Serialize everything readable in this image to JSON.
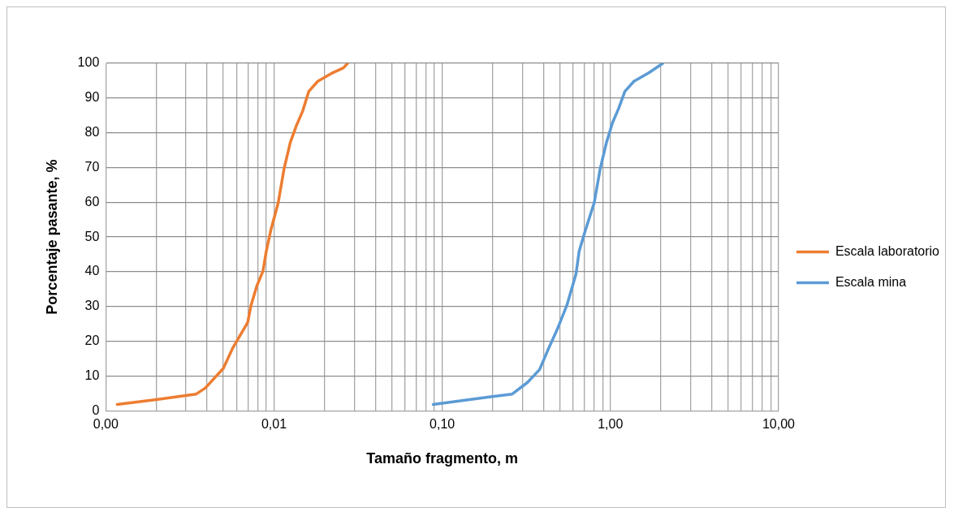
{
  "chart_data": {
    "type": "line",
    "xlabel": "Tamaño fragmento, m",
    "ylabel": "Porcentaje pasante, %",
    "log": "x",
    "grid": true,
    "legend": "right",
    "marker": "none",
    "line_style": "solid",
    "xlim": [
      0.001,
      10
    ],
    "ylim": [
      0,
      100
    ],
    "xticks": [
      {
        "value": 0.001,
        "label": "0,00"
      },
      {
        "value": 0.002,
        "label": null
      },
      {
        "value": 0.003,
        "label": null
      },
      {
        "value": 0.004,
        "label": null
      },
      {
        "value": 0.005,
        "label": null
      },
      {
        "value": 0.006,
        "label": null
      },
      {
        "value": 0.007,
        "label": null
      },
      {
        "value": 0.008,
        "label": null
      },
      {
        "value": 0.009,
        "label": null
      },
      {
        "value": 0.01,
        "label": "0,01"
      },
      {
        "value": 0.02,
        "label": null
      },
      {
        "value": 0.03,
        "label": null
      },
      {
        "value": 0.04,
        "label": null
      },
      {
        "value": 0.05,
        "label": null
      },
      {
        "value": 0.06,
        "label": null
      },
      {
        "value": 0.07,
        "label": null
      },
      {
        "value": 0.08,
        "label": null
      },
      {
        "value": 0.09,
        "label": null
      },
      {
        "value": 0.1,
        "label": "0,10"
      },
      {
        "value": 0.2,
        "label": null
      },
      {
        "value": 0.3,
        "label": null
      },
      {
        "value": 0.4,
        "label": null
      },
      {
        "value": 0.5,
        "label": null
      },
      {
        "value": 0.6,
        "label": null
      },
      {
        "value": 0.7,
        "label": null
      },
      {
        "value": 0.8,
        "label": null
      },
      {
        "value": 0.9,
        "label": null
      },
      {
        "value": 1,
        "label": "1,00"
      },
      {
        "value": 2,
        "label": null
      },
      {
        "value": 3,
        "label": null
      },
      {
        "value": 4,
        "label": null
      },
      {
        "value": 5,
        "label": null
      },
      {
        "value": 6,
        "label": null
      },
      {
        "value": 7,
        "label": null
      },
      {
        "value": 8,
        "label": null
      },
      {
        "value": 9,
        "label": null
      },
      {
        "value": 10,
        "label": "10,00"
      }
    ],
    "yticks": [
      0,
      10,
      20,
      30,
      40,
      50,
      60,
      70,
      80,
      90,
      100
    ],
    "series": [
      {
        "name": "Escala laboratorio",
        "color": "#ed7d31",
        "x": [
          0.00117,
          0.002,
          0.00345,
          0.0039,
          0.005,
          0.00568,
          0.00698,
          0.0073,
          0.00792,
          0.0086,
          0.009,
          0.00955,
          0.0106,
          0.0115,
          0.0125,
          0.0136,
          0.0148,
          0.0161,
          0.0182,
          0.0224,
          0.0259,
          0.0274
        ],
        "values": [
          1.8,
          3.2,
          4.8,
          6.5,
          12.2,
          18,
          25.4,
          30.3,
          36,
          40.2,
          45.9,
          51.7,
          59.9,
          69.8,
          77.2,
          82.1,
          86.2,
          91.9,
          94.8,
          97.3,
          98.7,
          100
        ]
      },
      {
        "name": "Escala mina",
        "color": "#5b9bd5",
        "x": [
          0.0885,
          0.195,
          0.261,
          0.321,
          0.379,
          0.43,
          0.486,
          0.551,
          0.625,
          0.652,
          0.708,
          0.802,
          0.871,
          0.948,
          1.03,
          1.12,
          1.22,
          1.38,
          1.7,
          2.05
        ],
        "values": [
          1.8,
          4,
          4.8,
          8.1,
          11.8,
          18,
          23.7,
          30.3,
          39.4,
          45.9,
          51.7,
          59.9,
          69.8,
          77.2,
          82.9,
          87,
          91.9,
          94.8,
          97.3,
          100
        ]
      }
    ]
  }
}
